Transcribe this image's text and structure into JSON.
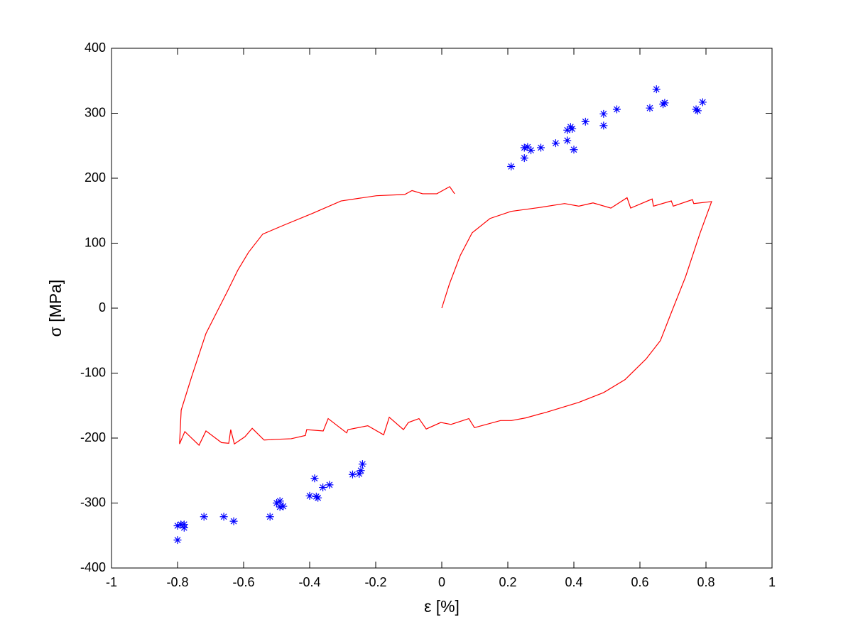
{
  "chart_data": {
    "type": "line",
    "x_label": "ε [%]",
    "y_label": "σ [MPa]",
    "xlim": [
      -1,
      1
    ],
    "xticks": [
      -1,
      -0.8,
      -0.6,
      -0.4,
      -0.2,
      0,
      0.2,
      0.4,
      0.6,
      0.8,
      1
    ],
    "ylim": [
      -400,
      400
    ],
    "yticks": [
      -400,
      -300,
      -200,
      -100,
      0,
      100,
      200,
      300,
      400
    ],
    "grid": false,
    "series": [
      {
        "type": "line",
        "color": "#ff0000",
        "x": [
          0,
          0.023,
          0.056,
          0.092,
          0.146,
          0.21,
          0.297,
          0.372,
          0.415,
          0.458,
          0.512,
          0.561,
          0.572,
          0.637,
          0.641,
          0.695,
          0.701,
          0.759,
          0.763,
          0.817,
          0.781,
          0.738,
          0.695,
          0.662,
          0.619,
          0.555,
          0.49,
          0.415,
          0.318,
          0.254,
          0.211,
          0.178,
          0.099,
          0.082,
          0.028,
          -0.003,
          -0.047,
          -0.069,
          -0.101,
          -0.116,
          -0.159,
          -0.176,
          -0.224,
          -0.284,
          -0.288,
          -0.344,
          -0.359,
          -0.409,
          -0.413,
          -0.456,
          -0.503,
          -0.538,
          -0.574,
          -0.596,
          -0.628,
          -0.639,
          -0.645,
          -0.667,
          -0.714,
          -0.735,
          -0.778,
          -0.794,
          -0.789,
          -0.757,
          -0.714,
          -0.682,
          -0.649,
          -0.617,
          -0.585,
          -0.542,
          -0.477,
          -0.391,
          -0.305,
          -0.198,
          -0.112,
          -0.09,
          -0.058,
          -0.015,
          0.024,
          0.039
        ],
        "values": [
          0,
          37,
          81,
          116,
          138,
          149,
          155,
          161,
          157,
          162,
          154,
          170,
          154,
          168,
          157,
          165,
          157,
          167,
          161,
          164,
          114,
          48,
          -7,
          -50,
          -78,
          -110,
          -130,
          -145,
          -160,
          -169,
          -173,
          -173,
          -184,
          -170,
          -179,
          -176,
          -186,
          -170,
          -176,
          -187,
          -168,
          -195,
          -181,
          -187,
          -192,
          -170,
          -189,
          -187,
          -196,
          -201,
          -202,
          -203,
          -185,
          -198,
          -209,
          -187,
          -208,
          -207,
          -189,
          -211,
          -190,
          -209,
          -157,
          -105,
          -39,
          -7,
          26,
          59,
          86,
          114,
          128,
          146,
          165,
          173,
          175,
          181,
          176,
          176,
          187,
          176
        ]
      },
      {
        "type": "scatter",
        "color": "#0000ff",
        "marker": "*",
        "x": [
          0.21,
          0.25,
          0.25,
          0.26,
          0.27,
          0.3,
          0.345,
          0.38,
          0.38,
          0.39,
          0.395,
          0.4,
          0.435,
          0.49,
          0.49,
          0.53,
          0.63,
          0.65,
          0.67,
          0.675,
          0.77,
          0.775,
          0.79,
          -0.8,
          -0.8,
          -0.79,
          -0.78,
          -0.78,
          -0.72,
          -0.66,
          -0.63,
          -0.52,
          -0.5,
          -0.49,
          -0.49,
          -0.48,
          -0.4,
          -0.385,
          -0.38,
          -0.375,
          -0.36,
          -0.34,
          -0.27,
          -0.25,
          -0.245,
          -0.24
        ],
        "values": [
          218,
          231,
          247,
          248,
          243,
          247,
          254,
          258,
          274,
          279,
          276,
          244,
          287,
          299,
          281,
          306,
          308,
          337,
          314,
          316,
          306,
          304,
          317,
          -357,
          -335,
          -333,
          -338,
          -333,
          -321,
          -321,
          -328,
          -321,
          -300,
          -297,
          -306,
          -305,
          -289,
          -262,
          -290,
          -292,
          -276,
          -272,
          -256,
          -255,
          -250,
          -240
        ]
      }
    ]
  }
}
